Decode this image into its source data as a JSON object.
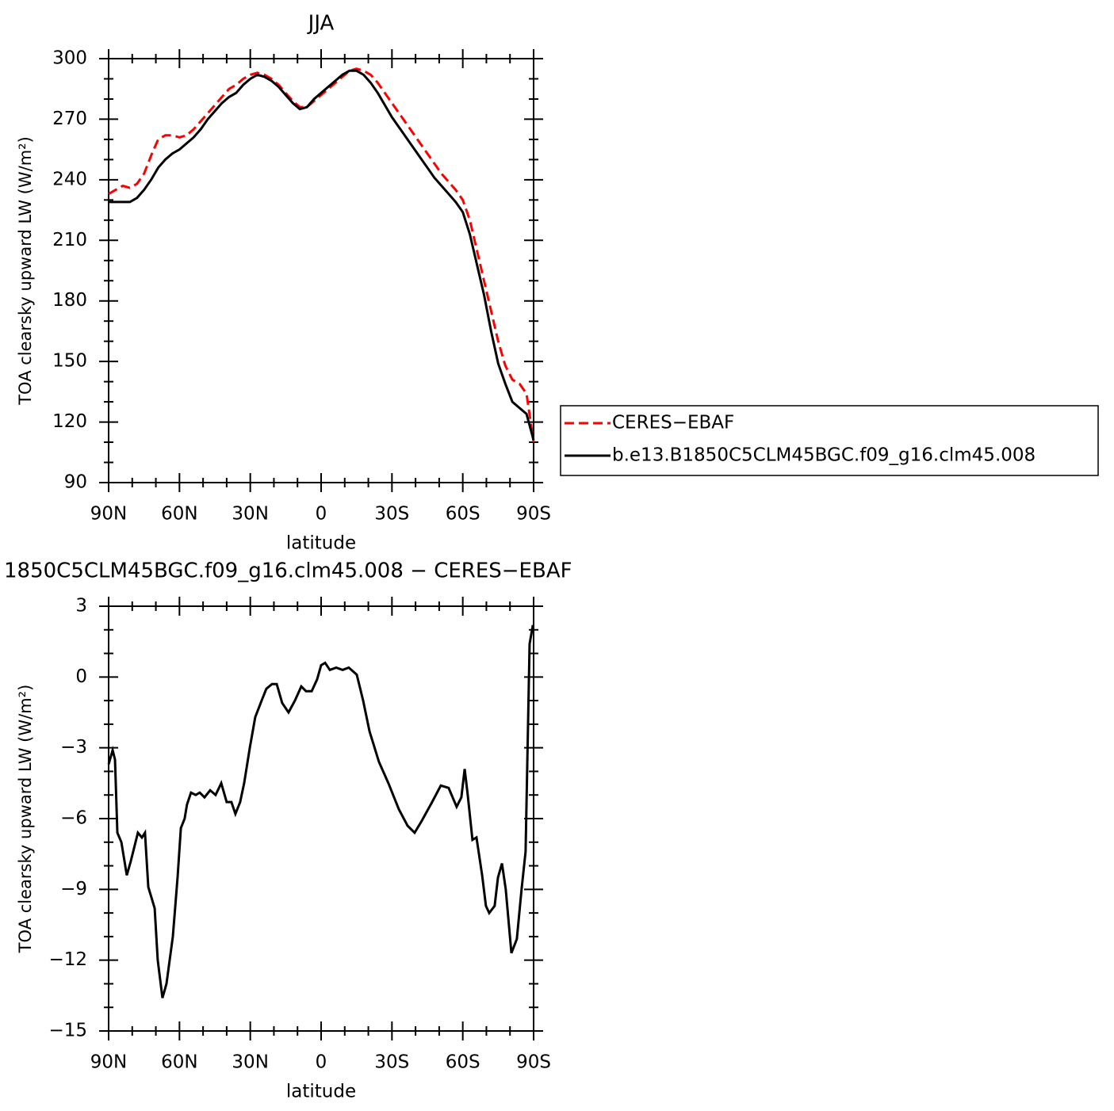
{
  "chart_data": [
    {
      "type": "line",
      "title": "JJA",
      "xlabel": "latitude",
      "ylabel": "TOA clearsky upward LW (W/m²)",
      "xlim": [
        90,
        -90
      ],
      "ylim": [
        90,
        300
      ],
      "xticks": [
        {
          "value": 90,
          "label": "90N"
        },
        {
          "value": 60,
          "label": "60N"
        },
        {
          "value": 30,
          "label": "30N"
        },
        0,
        {
          "value": -30,
          "label": "30S"
        },
        {
          "value": -60,
          "label": "60S"
        },
        {
          "value": -90,
          "label": "90S"
        }
      ],
      "yticks": [
        90,
        120,
        150,
        180,
        210,
        240,
        270,
        300
      ],
      "legend": "outside right",
      "x": [
        90,
        87,
        84,
        81,
        78,
        75,
        72,
        69,
        66,
        63,
        60,
        57,
        54,
        51,
        48,
        45,
        42,
        39,
        36,
        33,
        30,
        27,
        24,
        21,
        18,
        15,
        12,
        9,
        6,
        3,
        0,
        -3,
        -6,
        -9,
        -12,
        -15,
        -18,
        -21,
        -24,
        -27,
        -30,
        -33,
        -36,
        -39,
        -42,
        -45,
        -48,
        -51,
        -54,
        -57,
        -60,
        -63,
        -66,
        -69,
        -72,
        -75,
        -78,
        -81,
        -84,
        -87,
        -90
      ],
      "series": [
        {
          "name": "CERES−EBAF",
          "color": "#ff0000",
          "linestyle": "dashed",
          "values": [
            233,
            235,
            237,
            236,
            238,
            243,
            252,
            260,
            262,
            262,
            261,
            262,
            265,
            269,
            273,
            277,
            281,
            285,
            287,
            290,
            292,
            293,
            292,
            290,
            287,
            283,
            279,
            276,
            276,
            279,
            282,
            285,
            288,
            291,
            294,
            295,
            294,
            292,
            288,
            283,
            278,
            273,
            268,
            263,
            258,
            253,
            248,
            243,
            239,
            235,
            230,
            220,
            205,
            190,
            175,
            160,
            148,
            141,
            139,
            134,
            110
          ]
        },
        {
          "name": "b.e13.B1850C5CLM45BGC.f09_g16.clm45.008",
          "color": "#000000",
          "linestyle": "solid",
          "values": [
            229,
            229,
            229,
            229,
            231,
            235,
            240,
            246,
            250,
            253,
            255,
            258,
            261,
            265,
            270,
            274,
            278,
            281,
            283,
            287,
            290,
            292,
            291,
            289,
            286,
            282,
            278,
            275,
            276,
            280,
            283,
            286,
            289,
            292,
            294,
            294,
            292,
            288,
            283,
            277,
            271,
            266,
            261,
            256,
            251,
            246,
            241,
            237,
            233,
            229,
            224,
            213,
            198,
            183,
            165,
            149,
            139,
            130,
            127,
            124,
            111
          ]
        }
      ]
    },
    {
      "type": "line",
      "title": "1850C5CLM45BGC.f09_g16.clm45.008 − CERES−EBAF",
      "xlabel": "latitude",
      "ylabel": "TOA clearsky upward LW (W/m²)",
      "xlim": [
        90,
        -90
      ],
      "ylim": [
        -15,
        3
      ],
      "xticks": [
        {
          "value": 90,
          "label": "90N"
        },
        {
          "value": 60,
          "label": "60N"
        },
        {
          "value": 30,
          "label": "30N"
        },
        0,
        {
          "value": -30,
          "label": "30S"
        },
        {
          "value": -60,
          "label": "60S"
        },
        {
          "value": -90,
          "label": "90S"
        }
      ],
      "yticks": [
        {
          "value": -15,
          "label": "−15"
        },
        {
          "value": -12,
          "label": "−12"
        },
        {
          "value": -9,
          "label": "−9"
        },
        {
          "value": -6,
          "label": "−6"
        },
        {
          "value": -3,
          "label": "−3"
        },
        0,
        3
      ],
      "x": [
        90,
        88.3,
        87.3,
        86.3,
        84.6,
        82.3,
        80.6,
        77.6,
        75.9,
        74.6,
        73.2,
        70.5,
        69.2,
        67.2,
        65.5,
        62.8,
        60.8,
        59.4,
        57.8,
        56.8,
        55.1,
        53.1,
        51.4,
        49.4,
        47,
        44.7,
        42.3,
        40,
        38,
        36.3,
        34.3,
        32.6,
        30.2,
        27.9,
        25.2,
        23.2,
        20.8,
        18.8,
        16.5,
        13.8,
        11.1,
        8.4,
        6.4,
        4,
        1.7,
        0,
        -1.7,
        -3.7,
        -6.4,
        -9.1,
        -11.7,
        -15.1,
        -17.8,
        -20.5,
        -24.5,
        -28.5,
        -32.9,
        -36.6,
        -39.6,
        -42.6,
        -47,
        -50.7,
        -54,
        -57.4,
        -59.4,
        -60.8,
        -62.1,
        -64.1,
        -65.8,
        -68.2,
        -69.8,
        -71.2,
        -73.5,
        -74.9,
        -76.6,
        -78.2,
        -80.6,
        -82.9,
        -84.9,
        -86.6,
        -88.3,
        -89.7
      ],
      "series": [
        {
          "color": "#000000",
          "linestyle": "solid",
          "values": [
            -3.7,
            -3.1,
            -3.5,
            -6.6,
            -7.0,
            -8.4,
            -7.8,
            -6.6,
            -6.8,
            -6.6,
            -8.9,
            -9.8,
            -12,
            -13.6,
            -13.0,
            -11,
            -8.5,
            -6.4,
            -6.0,
            -5.4,
            -4.9,
            -5.0,
            -4.9,
            -5.1,
            -4.8,
            -5.0,
            -4.5,
            -5.3,
            -5.3,
            -5.8,
            -5.3,
            -4.5,
            -3.0,
            -1.7,
            -1.0,
            -0.5,
            -0.3,
            -0.3,
            -1.1,
            -1.5,
            -1.0,
            -0.4,
            -0.6,
            -0.6,
            -0.1,
            0.5,
            0.6,
            0.3,
            0.4,
            0.3,
            0.4,
            0.1,
            -1.0,
            -2.3,
            -3.6,
            -4.5,
            -5.6,
            -6.3,
            -6.6,
            -6.1,
            -5.3,
            -4.6,
            -4.7,
            -5.5,
            -5.1,
            -3.9,
            -5.0,
            -6.9,
            -6.8,
            -8.4,
            -9.7,
            -10,
            -9.7,
            -8.5,
            -7.9,
            -9.0,
            -11.7,
            -11.1,
            -9.0,
            -7.4,
            1.4,
            2.2
          ]
        }
      ]
    }
  ]
}
